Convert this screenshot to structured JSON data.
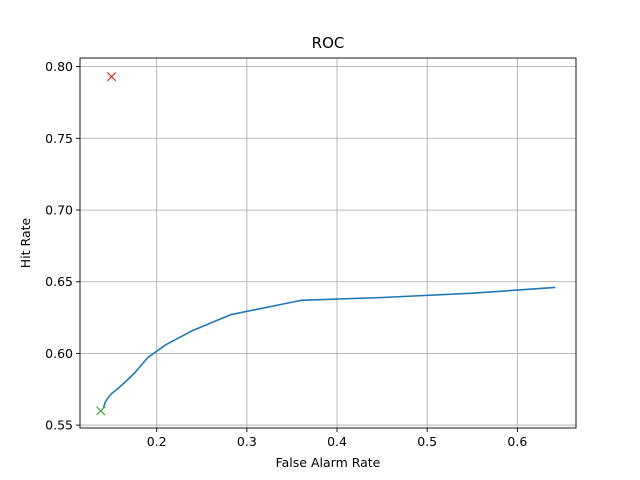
{
  "chart_data": {
    "type": "line",
    "title": "ROC",
    "xlabel": "False Alarm Rate",
    "ylabel": "Hit Rate",
    "xlim": [
      0.115,
      0.665
    ],
    "ylim": [
      0.548,
      0.806
    ],
    "xticks": [
      0.2,
      0.3,
      0.4,
      0.5,
      0.6
    ],
    "xtick_labels": [
      "0.2",
      "0.3",
      "0.4",
      "0.5",
      "0.6"
    ],
    "yticks": [
      0.55,
      0.6,
      0.65,
      0.7,
      0.75,
      0.8
    ],
    "ytick_labels": [
      "0.55",
      "0.60",
      "0.65",
      "0.70",
      "0.75",
      "0.80"
    ],
    "grid": true,
    "series": [
      {
        "color": "#1f77b4",
        "x": [
          0.141,
          0.143,
          0.146,
          0.15,
          0.158,
          0.165,
          0.175,
          0.19,
          0.21,
          0.24,
          0.282,
          0.36,
          0.45,
          0.55,
          0.642
        ],
        "y": [
          0.562,
          0.566,
          0.569,
          0.572,
          0.576,
          0.58,
          0.586,
          0.597,
          0.606,
          0.616,
          0.627,
          0.637,
          0.639,
          0.642,
          0.646
        ]
      }
    ],
    "markers": [
      {
        "x": 0.15,
        "y": 0.793,
        "color": "#d62728",
        "symbol": "x"
      },
      {
        "x": 0.138,
        "y": 0.56,
        "color": "#2ca02c",
        "symbol": "x"
      }
    ]
  }
}
